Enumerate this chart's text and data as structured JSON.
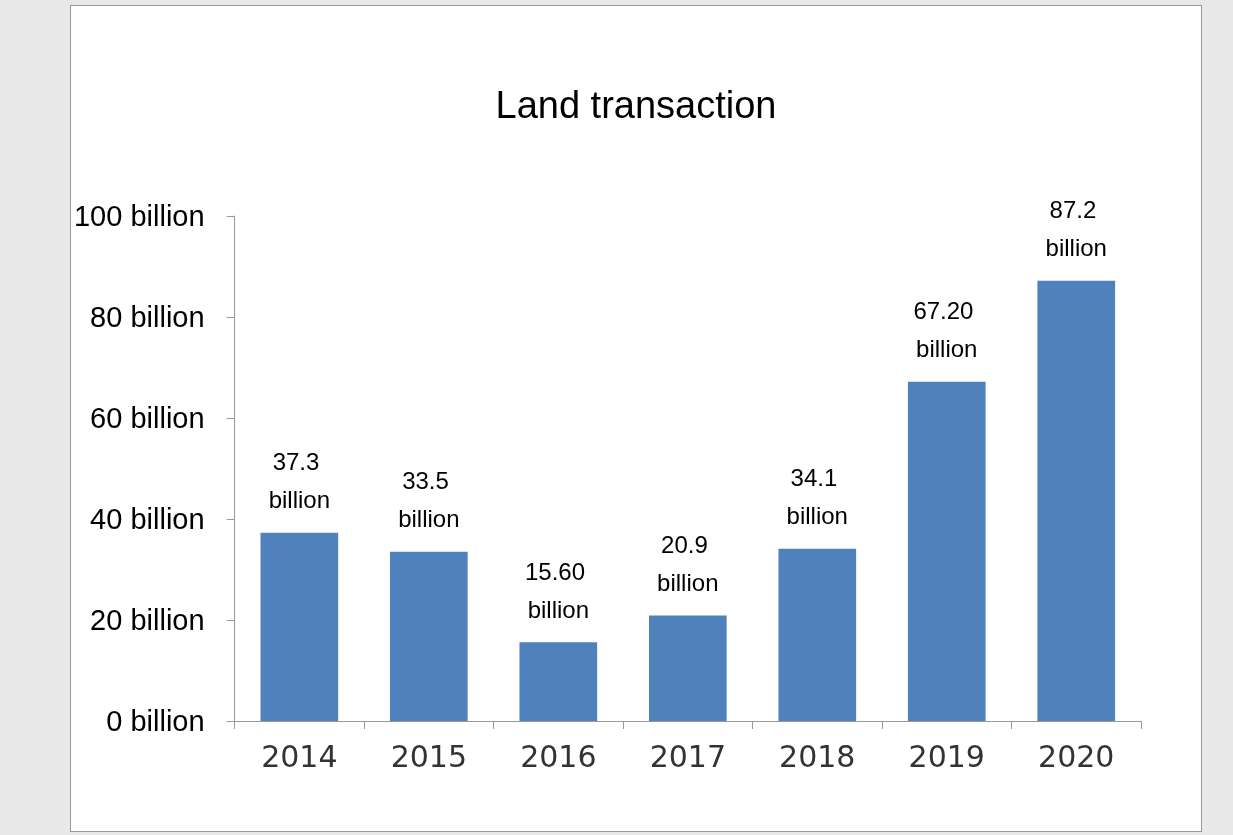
{
  "chart_data": {
    "type": "bar",
    "title": "Land transaction",
    "categories": [
      "2014",
      "2015",
      "2016",
      "2017",
      "2018",
      "2019",
      "2020"
    ],
    "values": [
      37.3,
      33.5,
      15.6,
      20.9,
      34.1,
      67.2,
      87.2
    ],
    "value_labels": [
      "37.3 billion",
      "33.5 billion",
      "15.60 billion",
      "20.9 billion",
      "34.1 billion",
      "67.20 billion",
      "87.2 billion"
    ],
    "color": "#4f81bd",
    "ylim": [
      0,
      100
    ],
    "yticks": [
      {
        "value": 0,
        "label": "0 billion"
      },
      {
        "value": 20,
        "label": "20 billion"
      },
      {
        "value": 40,
        "label": "40 billion"
      },
      {
        "value": 60,
        "label": "60 billion"
      },
      {
        "value": 80,
        "label": "80 billion"
      },
      {
        "value": 100,
        "label": "100 billion"
      }
    ],
    "grid": false
  }
}
